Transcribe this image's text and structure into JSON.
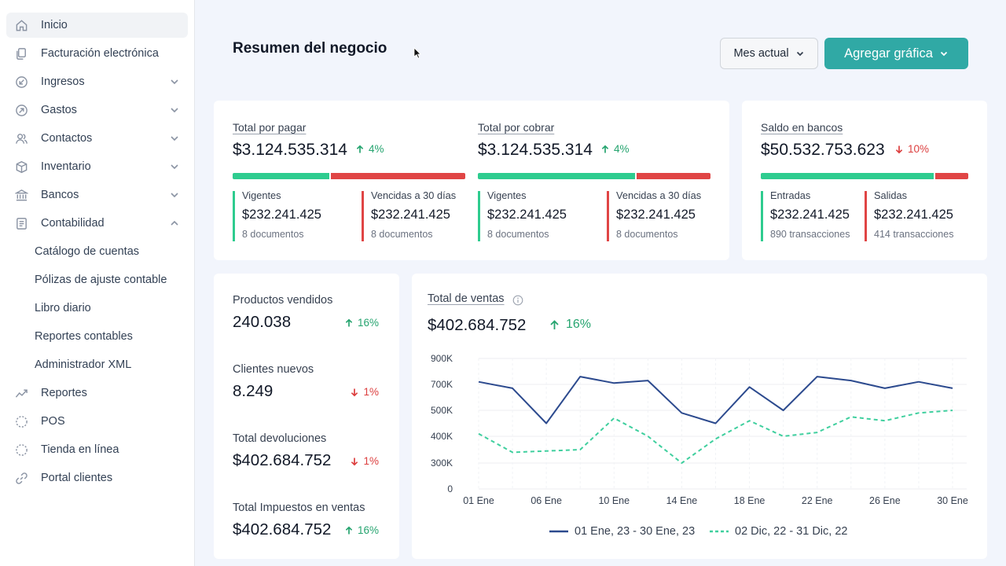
{
  "sidebar": {
    "items": [
      {
        "label": "Inicio",
        "icon": "home-icon",
        "name": "inicio",
        "active": true,
        "chevron": ""
      },
      {
        "label": "Facturación electrónica",
        "icon": "document-copy-icon",
        "name": "facturacion",
        "chevron": ""
      },
      {
        "label": "Ingresos",
        "icon": "arrow-down-left-circle-icon",
        "name": "ingresos",
        "chevron": "down"
      },
      {
        "label": "Gastos",
        "icon": "arrow-up-right-circle-icon",
        "name": "gastos",
        "chevron": "down"
      },
      {
        "label": "Contactos",
        "icon": "users-icon",
        "name": "contactos",
        "chevron": "down"
      },
      {
        "label": "Inventario",
        "icon": "box-icon",
        "name": "inventario",
        "chevron": "down"
      },
      {
        "label": "Bancos",
        "icon": "bank-icon",
        "name": "bancos",
        "chevron": "down"
      },
      {
        "label": "Contabilidad",
        "icon": "ledger-icon",
        "name": "contabilidad",
        "chevron": "up"
      }
    ],
    "subitems": [
      {
        "label": "Catálogo de cuentas",
        "name": "catalogo-cuentas"
      },
      {
        "label": "Pólizas de ajuste contable",
        "name": "polizas-ajuste"
      },
      {
        "label": "Libro diario",
        "name": "libro-diario"
      },
      {
        "label": "Reportes contables",
        "name": "reportes-contables"
      },
      {
        "label": "Administrador XML",
        "name": "administrador-xml"
      }
    ],
    "items_after": [
      {
        "label": "Reportes",
        "icon": "trend-line-icon",
        "name": "reportes"
      },
      {
        "label": "POS",
        "icon": "dashed-circle-icon",
        "name": "pos"
      },
      {
        "label": "Tienda en línea",
        "icon": "dashed-circle-icon",
        "name": "tienda"
      },
      {
        "label": "Portal clientes",
        "icon": "link-icon",
        "name": "portal"
      }
    ]
  },
  "header": {
    "title": "Resumen del negocio",
    "period_label": "Mes actual",
    "add_chart_label": "Agregar gráfica"
  },
  "summary": {
    "por_pagar": {
      "title": "Total por pagar",
      "value": "$3.124.535.314",
      "trend": "4%",
      "trend_dir": "up",
      "split": 0.42,
      "left": {
        "label": "Vigentes",
        "value": "$232.241.425",
        "count": "8 documentos"
      },
      "right": {
        "label": "Vencidas a 30 días",
        "value": "$232.241.425",
        "count": "8 documentos"
      }
    },
    "por_cobrar": {
      "title": "Total por cobrar",
      "value": "$3.124.535.314",
      "trend": "4%",
      "trend_dir": "up",
      "split": 0.68,
      "left": {
        "label": "Vigentes",
        "value": "$232.241.425",
        "count": "8 documentos"
      },
      "right": {
        "label": "Vencidas a 30 días",
        "value": "$232.241.425",
        "count": "8 documentos"
      }
    },
    "bancos": {
      "title": "Saldo en bancos",
      "value": "$50.532.753.623",
      "trend": "10%",
      "trend_dir": "down",
      "split": 0.84,
      "left": {
        "label": "Entradas",
        "value": "$232.241.425",
        "count": "890 transacciones"
      },
      "right": {
        "label": "Salidas",
        "value": "$232.241.425",
        "count": "414 transacciones"
      }
    }
  },
  "kpis": [
    {
      "label": "Productos vendidos",
      "value": "240.038",
      "trend": "16%",
      "trend_dir": "up"
    },
    {
      "label": "Clientes nuevos",
      "value": "8.249",
      "trend": "1%",
      "trend_dir": "down"
    },
    {
      "label": "Total devoluciones",
      "value": "$402.684.752",
      "trend": "1%",
      "trend_dir": "down"
    },
    {
      "label": "Total Impuestos en ventas",
      "value": "$402.684.752",
      "trend": "16%",
      "trend_dir": "up"
    }
  ],
  "sales": {
    "title": "Total de ventas",
    "value": "$402.684.752",
    "trend": "16%"
  },
  "chart_data": {
    "type": "line",
    "ylim": [
      0,
      900000
    ],
    "y_ticks": [
      0,
      300000,
      400000,
      500000,
      700000,
      900000
    ],
    "y_tick_labels": [
      "0",
      "300K",
      "400K",
      "500K",
      "700K",
      "900K"
    ],
    "x_tick_labels": [
      "01 Ene",
      "06 Ene",
      "10 Ene",
      "14 Ene",
      "18 Ene",
      "22 Ene",
      "26 Ene",
      "30 Ene"
    ],
    "grid": true,
    "legend_position": "bottom",
    "series": [
      {
        "name": "01 Ene, 23 - 30 Ene, 23",
        "color": "#2c4a8e",
        "style": "solid",
        "values": [
          720000,
          670000,
          450000,
          760000,
          710000,
          730000,
          490000,
          450000,
          680000,
          500000,
          760000,
          730000,
          670000,
          720000,
          670000
        ]
      },
      {
        "name": "02 Dic, 22 - 31 Dic, 22",
        "color": "#3fcf9e",
        "style": "dashed",
        "values": [
          410000,
          340000,
          345000,
          350000,
          470000,
          400000,
          300000,
          390000,
          460000,
          400000,
          415000,
          475000,
          460000,
          490000,
          500000
        ]
      }
    ]
  }
}
